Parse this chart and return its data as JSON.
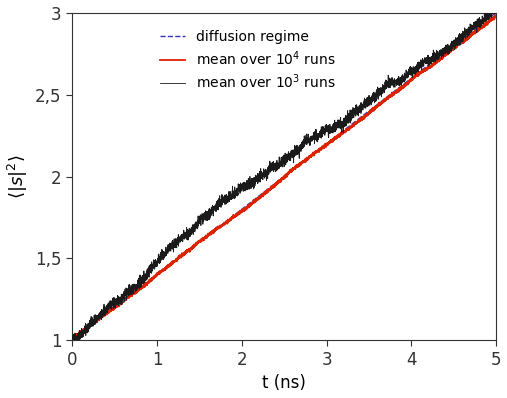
{
  "xlim": [
    0,
    5
  ],
  "ylim": [
    1,
    3
  ],
  "xlabel": "t (ns)",
  "ylabel": "<|s|$^2$>",
  "xticks": [
    0,
    1,
    2,
    3,
    4,
    5
  ],
  "yticks": [
    1.0,
    1.5,
    2.0,
    2.5,
    3.0
  ],
  "ytick_labels": [
    "1",
    "1,5",
    "2",
    "2,5",
    "3"
  ],
  "line_black_label": "mean over $10^3$ runs",
  "line_red_label": "mean over $10^4$ runs",
  "line_blue_label": "diffusion regime",
  "diffusion_slope": 0.4,
  "diffusion_intercept": 1.0,
  "n_points": 5000,
  "background_color": "#ffffff",
  "black_color": "#1a1a1a",
  "red_color": "#dd2200",
  "blue_color": "#3333bb"
}
